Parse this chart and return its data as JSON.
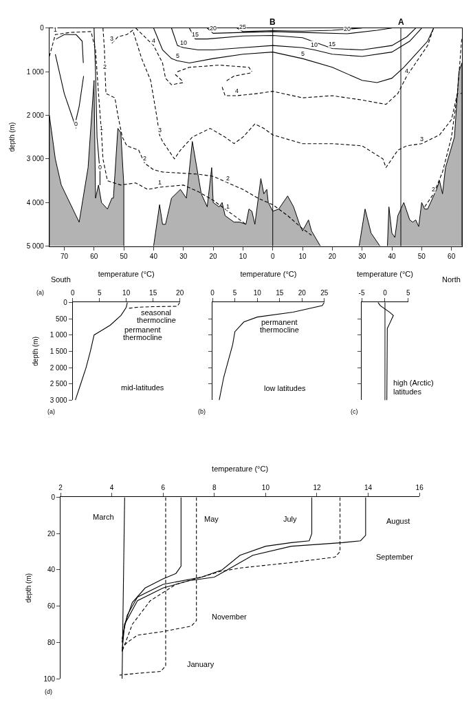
{
  "chart_data": [
    {
      "type": "line",
      "ylabel": "depth (m)",
      "xlim": [
        -75,
        63.5
      ],
      "ylim": [
        5000,
        0
      ],
      "xticks": [
        {
          "value": -70,
          "label": "70"
        },
        {
          "value": -60,
          "label": "60"
        },
        {
          "value": -50,
          "label": "50"
        },
        {
          "value": -40,
          "label": "40"
        },
        {
          "value": -30,
          "label": "30"
        },
        {
          "value": -20,
          "label": "20"
        },
        {
          "value": -10,
          "label": "10"
        },
        0,
        10,
        20,
        30,
        40,
        50,
        60
      ],
      "yticks": [
        0,
        {
          "value": 1000,
          "label": "1 000"
        },
        {
          "value": 2000,
          "label": "2 000"
        },
        {
          "value": 3000,
          "label": "3 000"
        },
        {
          "value": 4000,
          "label": "4 000"
        },
        {
          "value": 5000,
          "label": "5 000"
        }
      ],
      "series": [
        {
          "type": "area",
          "color": "#b3b3b3",
          "x": [
            -75,
            -75,
            -73,
            -71,
            -65,
            -62,
            -60,
            -59.5,
            -58.5,
            -57.5,
            -55.5,
            -54,
            -53.5,
            -52,
            -51,
            -50,
            -50
          ],
          "values": [
            5000,
            2000,
            3000,
            3600,
            4450,
            3200,
            1200,
            3900,
            3600,
            4000,
            4150,
            3900,
            3900,
            2300,
            2400,
            3600,
            5000
          ]
        },
        {
          "type": "area",
          "color": "#b3b3b3",
          "x": [
            -40,
            -38,
            -37,
            -36,
            -34,
            -31,
            -29,
            -27,
            -24,
            -22,
            -20.5,
            -20,
            -18,
            -17,
            -16,
            -13,
            -11,
            -9,
            -8,
            -7,
            -6,
            -4,
            -3,
            -2,
            -1.5,
            0,
            2,
            5,
            7,
            9,
            10,
            12,
            13,
            16
          ],
          "values": [
            5000,
            4050,
            4500,
            4500,
            3900,
            3700,
            3900,
            2600,
            3800,
            4100,
            3200,
            4000,
            4100,
            4000,
            4300,
            4450,
            4450,
            4500,
            4150,
            4200,
            4500,
            3450,
            3800,
            3700,
            4000,
            4200,
            4150,
            3850,
            4100,
            4500,
            4650,
            4400,
            4650,
            5000
          ]
        },
        {
          "type": "area",
          "color": "#b3b3b3",
          "x": [
            29,
            31,
            33,
            36
          ],
          "values": [
            5000,
            4150,
            4700,
            5000
          ]
        },
        {
          "type": "area",
          "color": "#b3b3b3",
          "x": [
            38.5,
            39,
            40,
            41,
            42,
            44,
            46,
            47,
            48,
            49,
            50,
            51,
            52,
            55,
            56,
            57,
            58,
            61,
            62.5,
            63.5,
            63.5
          ],
          "values": [
            5000,
            4100,
            4700,
            4800,
            4300,
            4000,
            4400,
            4450,
            4400,
            4550,
            4000,
            4150,
            4150,
            3700,
            3500,
            3800,
            3200,
            2500,
            1000,
            800,
            5000
          ]
        },
        {
          "type": "line",
          "color": "#000000",
          "x": [
            -66,
            -70,
            -73
          ],
          "values": [
            2300,
            1500,
            600
          ]
        },
        {
          "type": "line",
          "color": "#000000",
          "x": [
            -72.7,
            -70,
            -66,
            -64,
            -63.6
          ],
          "values": [
            250,
            150,
            150,
            300,
            800
          ]
        },
        {
          "type": "line",
          "color": "#000000",
          "x": [
            -63.5,
            -65,
            -66.2
          ],
          "values": [
            1100,
            1800,
            2150
          ]
        },
        {
          "type": "line",
          "color": "#000000",
          "x": [
            -60,
            -59.5,
            -59,
            -58,
            -58
          ],
          "values": [
            0,
            1000,
            2500,
            3300,
            3600
          ]
        },
        {
          "type": "line",
          "color": "#000000",
          "line_style": "dashed",
          "x": [
            -75,
            -73,
            -68,
            -61,
            -59.5,
            -58.5,
            -57.5,
            -57,
            -55.5,
            -51,
            -46,
            -42,
            -38,
            -30,
            -25,
            -20,
            -15,
            -11,
            -9
          ],
          "values": [
            650,
            150,
            100,
            80,
            500,
            1500,
            2400,
            3000,
            3500,
            3600,
            3550,
            3700,
            3650,
            3600,
            3750,
            3950,
            4200,
            4400,
            4500
          ]
        },
        {
          "type": "line",
          "color": "#000000",
          "line_style": "dashed",
          "x": [
            -57,
            -56.5,
            -56.3,
            -56,
            -53,
            -52,
            -50.5,
            -49,
            -45,
            -43,
            -40,
            -37,
            -25,
            -20,
            -15,
            -10,
            -5,
            0,
            5,
            10,
            13
          ],
          "values": [
            0,
            500,
            1000,
            1500,
            1600,
            2000,
            2500,
            2700,
            2800,
            3100,
            3250,
            3300,
            3350,
            3400,
            3550,
            3700,
            3900,
            4050,
            4300,
            4600,
            4750
          ]
        },
        {
          "type": "line",
          "color": "#000000",
          "line_style": "dashed",
          "x": [
            51,
            54,
            57,
            60,
            62,
            63.5
          ],
          "values": [
            4100,
            3800,
            3300,
            2500,
            1500,
            200
          ]
        },
        {
          "type": "line",
          "color": "#000000",
          "line_style": "dashed",
          "x": [
            -54,
            -52,
            -49,
            -47,
            -44,
            -41,
            -40,
            -39,
            -38,
            -37,
            -33,
            -31,
            -27,
            -21,
            -16,
            -13,
            -10,
            -6,
            -3,
            0,
            5,
            10,
            20,
            30,
            37,
            38,
            42,
            45,
            50,
            56,
            60,
            62,
            63.5
          ],
          "values": [
            350,
            200,
            150,
            50,
            700,
            1200,
            1600,
            2000,
            2450,
            2600,
            3000,
            2800,
            2500,
            2300,
            2500,
            2650,
            2500,
            2200,
            2300,
            2450,
            2550,
            2650,
            2650,
            2700,
            3000,
            3200,
            2800,
            2700,
            2650,
            2450,
            2100,
            1500,
            1500
          ]
        },
        {
          "type": "line",
          "color": "#000000",
          "line_style": "dashed",
          "x": [
            -46,
            -40,
            -37,
            -36,
            -34,
            -30
          ],
          "values": [
            0,
            400,
            800,
            1150,
            1300,
            1250
          ]
        },
        {
          "type": "line",
          "color": "#000000",
          "line_style": "dashed",
          "x": [
            -30.5,
            -33
          ],
          "values": [
            1200,
            1050
          ]
        },
        {
          "type": "line",
          "color": "#000000",
          "line_style": "dashed",
          "x": [
            -32,
            -28,
            -18,
            -8,
            -7
          ],
          "values": [
            1000,
            900,
            850,
            900,
            1000
          ]
        },
        {
          "type": "line",
          "color": "#000000",
          "line_style": "dashed",
          "x": [
            -7.5,
            -13,
            -16
          ],
          "values": [
            1030,
            1100,
            1230
          ]
        },
        {
          "type": "line",
          "color": "#000000",
          "line_style": "dashed",
          "x": [
            -17,
            -16,
            -12,
            -5,
            0,
            10,
            20,
            30,
            38,
            42,
            45,
            48,
            52,
            54
          ],
          "values": [
            1350,
            1550,
            1550,
            1500,
            1450,
            1600,
            1550,
            1650,
            1750,
            1500,
            1100,
            800,
            400,
            0
          ]
        },
        {
          "type": "line",
          "color": "#000000",
          "x": [
            -40,
            -37,
            -34,
            -32,
            -28,
            -20,
            -10,
            0,
            10,
            20,
            30,
            35,
            40,
            44,
            48,
            52,
            54
          ],
          "values": [
            0,
            500,
            700,
            750,
            800,
            700,
            600,
            550,
            700,
            900,
            1200,
            1250,
            1150,
            900,
            600,
            300,
            0
          ]
        },
        {
          "type": "line",
          "color": "#000000",
          "x": [
            -34,
            -32,
            -30,
            -25,
            -20,
            -10,
            0,
            10,
            14,
            20,
            30,
            40,
            46,
            50
          ],
          "values": [
            0,
            400,
            450,
            500,
            500,
            450,
            400,
            450,
            500,
            600,
            650,
            550,
            300,
            0
          ]
        },
        {
          "type": "line",
          "color": "#000000",
          "x": [
            -28,
            -26,
            -22,
            -10,
            0,
            10,
            20,
            30,
            40,
            45,
            48
          ],
          "values": [
            0,
            250,
            250,
            180,
            170,
            220,
            470,
            500,
            400,
            200,
            0
          ]
        },
        {
          "type": "line",
          "color": "#000000",
          "x": [
            -22,
            -20,
            -10,
            0,
            10,
            25,
            35,
            40
          ],
          "values": [
            0,
            120,
            100,
            80,
            100,
            130,
            50,
            0
          ]
        },
        {
          "type": "line",
          "color": "#000000",
          "x": [
            -12,
            -10,
            0,
            10,
            20,
            30
          ],
          "values": [
            0,
            80,
            60,
            70,
            50,
            0
          ]
        }
      ],
      "ref_lines": [
        {
          "axis": "x",
          "value": 0,
          "label": "B"
        },
        {
          "axis": "x",
          "value": 43,
          "label": "A"
        }
      ],
      "annotations": [
        "South",
        "North",
        "(a)",
        {
          "text": "0",
          "x": -66,
          "y": 2300
        },
        {
          "text": "0",
          "x": -58,
          "y": 3300
        },
        {
          "text": "1",
          "x": -73,
          "y": 150
        },
        {
          "text": "1",
          "x": -57.5,
          "y": 2400
        },
        {
          "text": "1",
          "x": -38,
          "y": 3650
        },
        {
          "text": "1",
          "x": -15,
          "y": 4200
        },
        {
          "text": "2",
          "x": -56.3,
          "y": 1000
        },
        {
          "text": "2",
          "x": -43,
          "y": 3100
        },
        {
          "text": "2",
          "x": -15,
          "y": 3550
        },
        {
          "text": "2",
          "x": 54,
          "y": 3800
        },
        {
          "text": "3",
          "x": -54,
          "y": 350
        },
        {
          "text": "3",
          "x": -38,
          "y": 2450
        },
        {
          "text": "3",
          "x": 50,
          "y": 2650
        },
        {
          "text": "4",
          "x": -40,
          "y": 400
        },
        {
          "text": "4",
          "x": -12,
          "y": 1550
        },
        {
          "text": "4",
          "x": 45,
          "y": 1100
        },
        {
          "text": "5",
          "x": -32,
          "y": 750
        },
        {
          "text": "5",
          "x": 10,
          "y": 700
        },
        {
          "text": "10",
          "x": -30,
          "y": 450
        },
        {
          "text": "10",
          "x": 14,
          "y": 500
        },
        {
          "text": "15",
          "x": -26,
          "y": 250
        },
        {
          "text": "15",
          "x": 20,
          "y": 470
        },
        {
          "text": "20",
          "x": -20,
          "y": 120
        },
        {
          "text": "20",
          "x": 25,
          "y": 130
        },
        {
          "text": "25",
          "x": -10,
          "y": 80
        }
      ]
    },
    {
      "type": "line",
      "xlabel": "temperature (°C)",
      "ylabel": "depth (m)",
      "xlim": [
        0,
        20
      ],
      "ylim": [
        3000,
        0
      ],
      "xticks": [
        0,
        5,
        10,
        15,
        20
      ],
      "yticks": [
        0,
        500,
        {
          "value": 1000,
          "label": "1 000"
        },
        {
          "value": 1500,
          "label": "1 500"
        },
        {
          "value": 2000,
          "label": "2 000"
        },
        {
          "value": 2500,
          "label": "2 500"
        },
        {
          "value": 3000,
          "label": "3 000"
        }
      ],
      "series": [
        {
          "color": "#000000",
          "x": [
            10.2,
            10,
            9,
            7,
            5,
            4,
            3.3,
            2.5,
            1.5,
            0.5
          ],
          "values": [
            0,
            150,
            400,
            700,
            900,
            1000,
            1500,
            2000,
            2500,
            3000
          ]
        },
        {
          "color": "#000000",
          "line_style": "dashed",
          "x": [
            20,
            19.5,
            15,
            12,
            10.5
          ],
          "values": [
            0,
            120,
            130,
            150,
            180
          ]
        }
      ],
      "annotations": [
        "(a)",
        "seasonal",
        "thermocline",
        "permanent",
        "thermocline",
        "mid-latitudes"
      ]
    },
    {
      "type": "line",
      "xlabel": "temperature (°C)",
      "xlim": [
        0,
        25
      ],
      "ylim": [
        3000,
        0
      ],
      "xticks": [
        0,
        5,
        10,
        15,
        20,
        25
      ],
      "tick_labels": "x",
      "yticks": [
        {
          "value": 500,
          "label": null
        },
        {
          "value": 1000,
          "label": null
        },
        {
          "value": 1500,
          "label": null
        },
        {
          "value": 2000,
          "label": null
        },
        {
          "value": 2500,
          "label": null
        }
      ],
      "series": [
        {
          "color": "#000000",
          "x": [
            25,
            24.5,
            18,
            10,
            7,
            5,
            4.5,
            3.5,
            2.5,
            1.5
          ],
          "values": [
            0,
            100,
            300,
            450,
            600,
            900,
            1300,
            1800,
            2300,
            3000
          ]
        }
      ],
      "annotations": [
        "(b)",
        "permanent",
        "thermocline",
        "low latitudes"
      ]
    },
    {
      "type": "line",
      "xlabel": "temperature (°C)",
      "xlim": [
        -5,
        5
      ],
      "ylim": [
        3000,
        0
      ],
      "xticks": [
        -5,
        0,
        5
      ],
      "tick_labels": "x",
      "yticks": [
        {
          "value": 500,
          "label": null
        },
        {
          "value": 1000,
          "label": null
        },
        {
          "value": 1500,
          "label": null
        },
        {
          "value": 2000,
          "label": null
        },
        {
          "value": 2500,
          "label": null
        }
      ],
      "series": [
        {
          "color": "#000000",
          "x": [
            -1.5,
            -1,
            1,
            1.8,
            1,
            0.5,
            0.4
          ],
          "values": [
            0,
            100,
            300,
            400,
            650,
            800,
            3000
          ]
        }
      ],
      "ref_lines": [
        {
          "axis": "x",
          "value": 0
        }
      ],
      "annotations": [
        "(c)",
        "high (Arctic)",
        "latitudes"
      ]
    },
    {
      "type": "line",
      "xlabel": "temperature (°C)",
      "ylabel": "depth (m)",
      "xlim": [
        2,
        16
      ],
      "ylim": [
        100,
        0
      ],
      "xticks": [
        2,
        4,
        6,
        8,
        10,
        12,
        14,
        16
      ],
      "yticks": [
        0,
        20,
        40,
        60,
        80,
        100
      ],
      "series": [
        {
          "color": "#000000",
          "x": [
            4.5,
            4.4
          ],
          "values": [
            0,
            100
          ]
        },
        {
          "color": "#000000",
          "x": [
            6.7,
            6.7,
            6.5,
            6,
            5.3,
            4.8,
            4.5,
            4.4
          ],
          "values": [
            0,
            38,
            42,
            45,
            50,
            58,
            70,
            80
          ]
        },
        {
          "color": "#000000",
          "x": [
            11.8,
            11.8,
            11.7,
            11,
            10,
            9,
            8.3,
            7.5,
            6,
            5,
            4.6,
            4.4
          ],
          "values": [
            0,
            20,
            24,
            25,
            27,
            32,
            40,
            44,
            48,
            55,
            65,
            78
          ]
        },
        {
          "color": "#000000",
          "x": [
            13.9,
            13.9,
            13.7,
            13,
            11,
            9.5,
            8.5,
            8,
            7,
            6,
            5,
            4.5,
            4.4
          ],
          "values": [
            0,
            21,
            24,
            25,
            27,
            32,
            40,
            44,
            46,
            50,
            57,
            70,
            85
          ]
        },
        {
          "color": "#000000",
          "line_style": "dashed",
          "x": [
            12.9,
            12.9,
            12.7,
            11,
            9,
            8.2,
            7.5,
            6.5,
            5.5,
            4.8,
            4.4
          ],
          "values": [
            0,
            30,
            33,
            36,
            39,
            41,
            44,
            48,
            57,
            70,
            85
          ]
        },
        {
          "color": "#000000",
          "line_style": "dashed",
          "x": [
            7.3,
            7.3,
            7.1,
            6,
            5,
            4.6,
            4.4
          ],
          "values": [
            0,
            68,
            71,
            74,
            76,
            80,
            83
          ]
        },
        {
          "color": "#000000",
          "line_style": "dashed",
          "x": [
            6.1,
            6.1,
            5.9,
            5,
            4.3
          ],
          "values": [
            0,
            93,
            96,
            97,
            98
          ]
        }
      ],
      "annotations": [
        "(d)",
        "March",
        "May",
        "July",
        "August",
        "September",
        "November",
        "January"
      ]
    }
  ]
}
